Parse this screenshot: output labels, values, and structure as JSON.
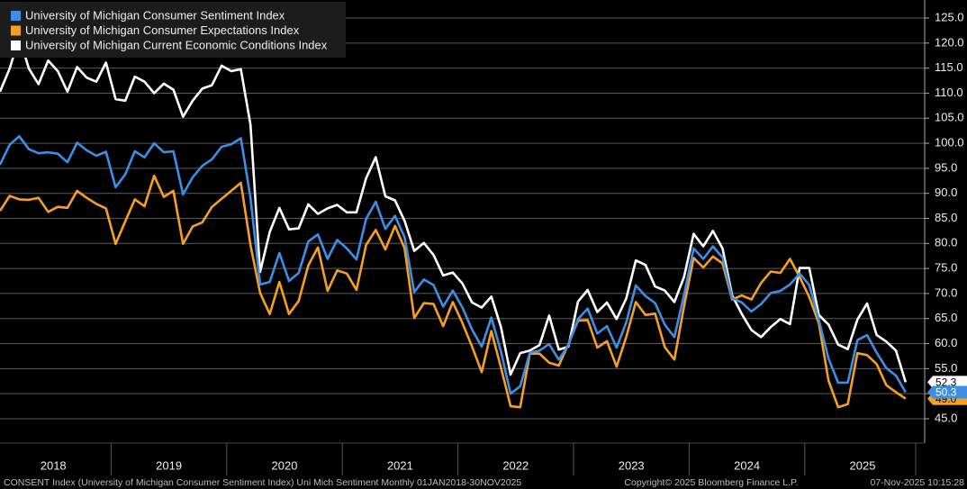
{
  "chart_data": {
    "type": "line",
    "ylim": [
      40.5,
      128.6
    ],
    "yticks": [
      {
        "value": 45,
        "label": "45.0"
      },
      {
        "value": 50,
        "label": "50.0"
      },
      {
        "value": 55,
        "label": "55.0"
      },
      {
        "value": 60,
        "label": "60.0"
      },
      {
        "value": 65,
        "label": "65.0"
      },
      {
        "value": 70,
        "label": "70.0"
      },
      {
        "value": 75,
        "label": "75.0"
      },
      {
        "value": 80,
        "label": "80.0"
      },
      {
        "value": 85,
        "label": "85.0"
      },
      {
        "value": 90,
        "label": "90.0"
      },
      {
        "value": 95,
        "label": "95.0"
      },
      {
        "value": 100,
        "label": "100.0"
      },
      {
        "value": 105,
        "label": "105.0"
      },
      {
        "value": 110,
        "label": "110.0"
      },
      {
        "value": 115,
        "label": "115.0"
      },
      {
        "value": 120,
        "label": "120.0"
      },
      {
        "value": 125,
        "label": "125.0"
      }
    ],
    "grid": true,
    "legend": "top-left",
    "categories": [
      null,
      null,
      null,
      null,
      null,
      null,
      "2018",
      null,
      null,
      null,
      null,
      null,
      null,
      null,
      null,
      null,
      null,
      null,
      "2019",
      null,
      null,
      null,
      null,
      null,
      null,
      null,
      null,
      null,
      null,
      null,
      "2020",
      null,
      null,
      null,
      null,
      null,
      null,
      null,
      null,
      null,
      null,
      null,
      "2021",
      null,
      null,
      null,
      null,
      null,
      null,
      null,
      null,
      null,
      null,
      null,
      "2022",
      null,
      null,
      null,
      null,
      null,
      null,
      null,
      null,
      null,
      null,
      null,
      "2023",
      null,
      null,
      null,
      null,
      null,
      null,
      null,
      null,
      null,
      null,
      null,
      "2024",
      null,
      null,
      null,
      null,
      null,
      null,
      null,
      null,
      null,
      null,
      null,
      "2025",
      null,
      null,
      null,
      null
    ],
    "series": [
      {
        "name": "University of Michigan Consumer Sentiment Index",
        "color": "#3d8fe6",
        "values": [
          95.7,
          99.7,
          101.4,
          98.8,
          98.0,
          98.2,
          97.9,
          96.2,
          100.1,
          98.6,
          97.5,
          98.3,
          91.2,
          93.8,
          98.4,
          97.2,
          100.0,
          98.2,
          98.4,
          89.8,
          93.2,
          95.5,
          96.8,
          99.3,
          99.8,
          101.0,
          89.1,
          71.8,
          72.3,
          78.1,
          72.5,
          74.1,
          80.4,
          81.8,
          76.9,
          80.7,
          79.0,
          76.8,
          84.9,
          88.3,
          82.9,
          85.5,
          81.2,
          70.3,
          72.8,
          71.7,
          67.4,
          70.6,
          67.2,
          62.8,
          59.4,
          65.2,
          58.4,
          50.0,
          51.5,
          58.2,
          58.6,
          59.9,
          56.8,
          59.7,
          64.9,
          67.0,
          62.0,
          63.5,
          59.2,
          64.2,
          71.6,
          69.5,
          68.1,
          63.8,
          61.3,
          69.7,
          79.0,
          76.9,
          79.4,
          77.2,
          69.1,
          68.2,
          66.4,
          67.9,
          70.1,
          70.5,
          71.8,
          74.0,
          71.7,
          64.7,
          57.0,
          52.2,
          52.2,
          60.7,
          61.7,
          58.2,
          55.1,
          53.6,
          50.3
        ],
        "last_label": "50.3"
      },
      {
        "name": "University of Michigan Consumer Expectations Index",
        "color": "#f5a020",
        "values": [
          86.5,
          89.5,
          88.8,
          88.7,
          89.1,
          86.3,
          87.3,
          87.1,
          90.5,
          89.1,
          87.9,
          87.0,
          79.9,
          84.4,
          88.8,
          87.4,
          93.5,
          89.3,
          90.5,
          79.9,
          83.4,
          84.2,
          87.3,
          88.9,
          90.5,
          92.1,
          79.7,
          70.1,
          65.9,
          72.3,
          65.9,
          68.5,
          75.6,
          79.2,
          70.5,
          74.6,
          74.0,
          70.7,
          79.7,
          82.7,
          78.8,
          83.5,
          79.0,
          65.1,
          68.1,
          67.9,
          63.5,
          68.3,
          64.1,
          59.4,
          54.3,
          62.5,
          55.2,
          47.5,
          47.3,
          58.0,
          58.0,
          56.2,
          55.6,
          59.9,
          64.6,
          64.7,
          59.2,
          60.5,
          55.4,
          61.3,
          68.3,
          65.7,
          66.0,
          59.3,
          56.8,
          67.4,
          77.1,
          75.2,
          77.4,
          76.0,
          68.8,
          69.6,
          68.8,
          72.1,
          74.4,
          74.1,
          76.9,
          73.3,
          69.3,
          64.0,
          52.6,
          47.3,
          47.9,
          58.1,
          57.7,
          55.9,
          51.7,
          50.3,
          49.0
        ],
        "last_label": "49.0"
      },
      {
        "name": "University of Michigan Current Economic Conditions Index",
        "color": "#ffffff",
        "values": [
          110.3,
          114.9,
          121.2,
          114.9,
          111.8,
          116.5,
          114.4,
          110.3,
          115.2,
          113.1,
          112.3,
          116.1,
          108.8,
          108.5,
          113.3,
          112.3,
          110.0,
          111.9,
          110.7,
          105.3,
          108.5,
          110.9,
          111.6,
          115.5,
          114.4,
          114.8,
          103.7,
          74.3,
          82.3,
          87.1,
          82.8,
          83.0,
          87.8,
          85.9,
          87.0,
          87.7,
          86.2,
          86.2,
          93.0,
          97.2,
          89.4,
          88.6,
          84.5,
          78.5,
          80.1,
          77.7,
          73.6,
          74.2,
          72.0,
          68.2,
          67.2,
          69.4,
          63.3,
          53.8,
          58.1,
          58.6,
          59.7,
          65.6,
          58.8,
          59.4,
          68.4,
          70.7,
          66.3,
          68.2,
          64.9,
          69.0,
          76.6,
          75.7,
          71.4,
          70.6,
          68.3,
          73.3,
          81.9,
          79.4,
          82.5,
          79.0,
          69.6,
          65.9,
          62.7,
          61.3,
          63.3,
          64.9,
          63.9,
          75.1,
          75.1,
          65.7,
          63.8,
          59.8,
          58.9,
          64.8,
          68.0,
          61.7,
          60.4,
          58.6,
          52.3
        ],
        "last_label": "52.3"
      }
    ],
    "footer": "CONSENT Index (University of Michigan Consumer Sentiment Index) Uni Mich Sentiment Monthly 01JAN2018-30NOV2025",
    "copyright": "Copyright© 2025 Bloomberg Finance L.P.",
    "timestamp": "07-Nov-2025 10:15:28"
  }
}
